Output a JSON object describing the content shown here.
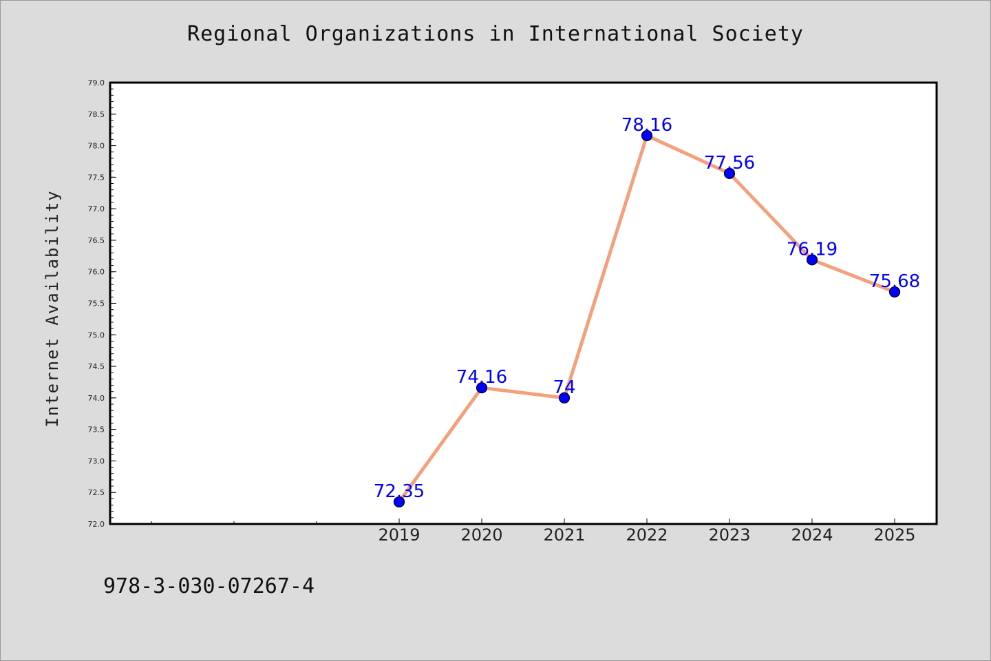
{
  "chart_data": {
    "type": "line",
    "title": "Regional Organizations in International Society",
    "xlabel": "",
    "ylabel": "Internet Availability",
    "x": [
      "2019",
      "2020",
      "2021",
      "2022",
      "2023",
      "2024",
      "2025"
    ],
    "values": [
      72.35,
      74.16,
      74,
      78.16,
      77.56,
      76.19,
      75.68
    ],
    "data_labels": [
      "72.35",
      "74.16",
      "74",
      "78.16",
      "77.56",
      "76.19",
      "75.68"
    ],
    "ylim": [
      72.0,
      79.0
    ],
    "yticks": [
      "72.0",
      "72.5",
      "73.0",
      "73.5",
      "74.0",
      "74.5",
      "75.0",
      "75.5",
      "76.0",
      "76.5",
      "77.0",
      "77.5",
      "78.0",
      "78.5",
      "79.0"
    ],
    "grid": false,
    "colors": {
      "line": "#f4a07c",
      "marker": "#0000ff",
      "data_label": "#0000ff",
      "plot_background": "#ffffff",
      "page_background": "#dcdcdc"
    }
  },
  "footer": {
    "isbn": "978-3-030-07267-4"
  }
}
